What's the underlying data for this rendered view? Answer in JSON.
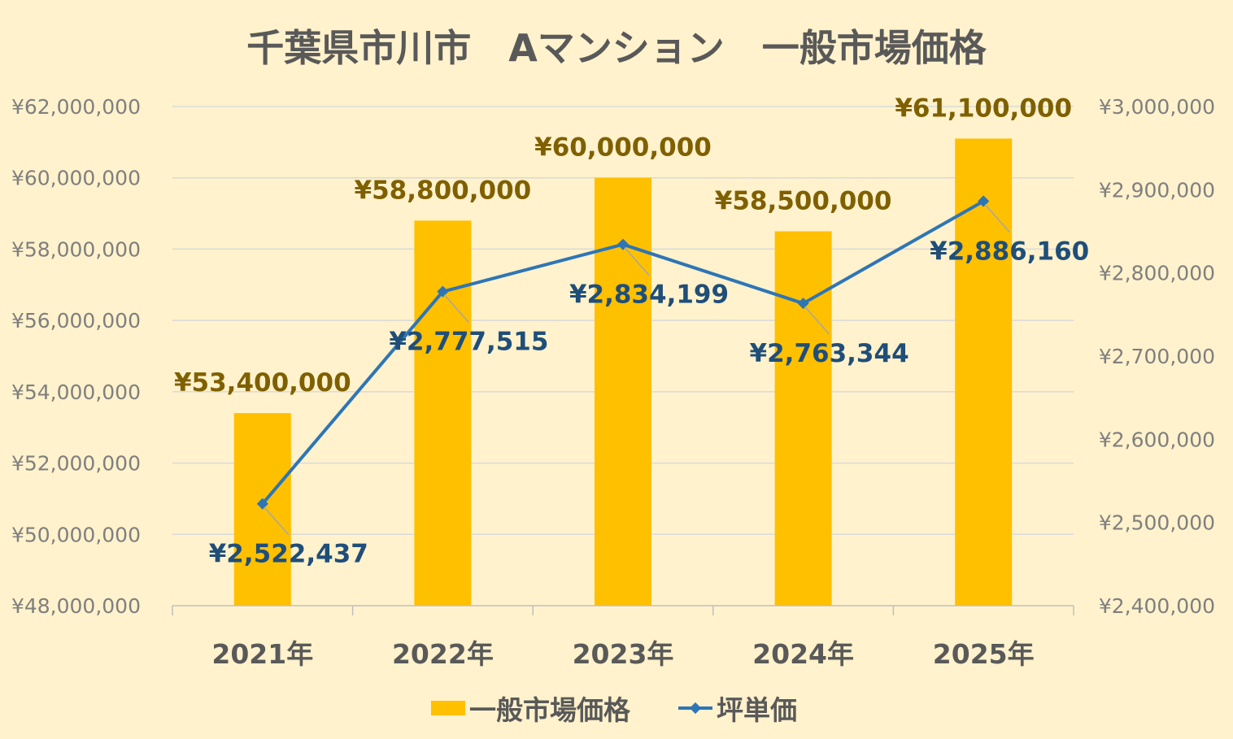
{
  "chart_data": {
    "type": "bar",
    "title": "千葉県市川市　Aマンション　一般市場価格",
    "categories": [
      "2021年",
      "2022年",
      "2023年",
      "2024年",
      "2025年"
    ],
    "series": [
      {
        "name": "一般市場価格",
        "type": "bar",
        "axis": "left",
        "color": "#ffc000",
        "values": [
          53400000,
          58800000,
          60000000,
          58500000,
          61100000
        ],
        "labels": [
          "¥53,400,000",
          "¥58,800,000",
          "¥60,000,000",
          "¥58,500,000",
          "¥61,100,000"
        ]
      },
      {
        "name": "坪単価",
        "type": "line",
        "axis": "right",
        "color": "#2e75b6",
        "values": [
          2522437,
          2777515,
          2834199,
          2763344,
          2886160
        ],
        "labels": [
          "¥2,522,437",
          "¥2,777,515",
          "¥2,834,199",
          "¥2,763,344",
          "¥2,886,160"
        ]
      }
    ],
    "y_left": {
      "min": 48000000,
      "max": 62000000,
      "ticks": [
        "¥48,000,000",
        "¥50,000,000",
        "¥52,000,000",
        "¥54,000,000",
        "¥56,000,000",
        "¥58,000,000",
        "¥60,000,000",
        "¥62,000,000"
      ]
    },
    "y_right": {
      "min": 2400000,
      "max": 3000000,
      "ticks": [
        "¥2,400,000",
        "¥2,500,000",
        "¥2,600,000",
        "¥2,700,000",
        "¥2,800,000",
        "¥2,900,000",
        "¥3,000,000"
      ]
    },
    "grid": true,
    "legend": "bottom"
  }
}
